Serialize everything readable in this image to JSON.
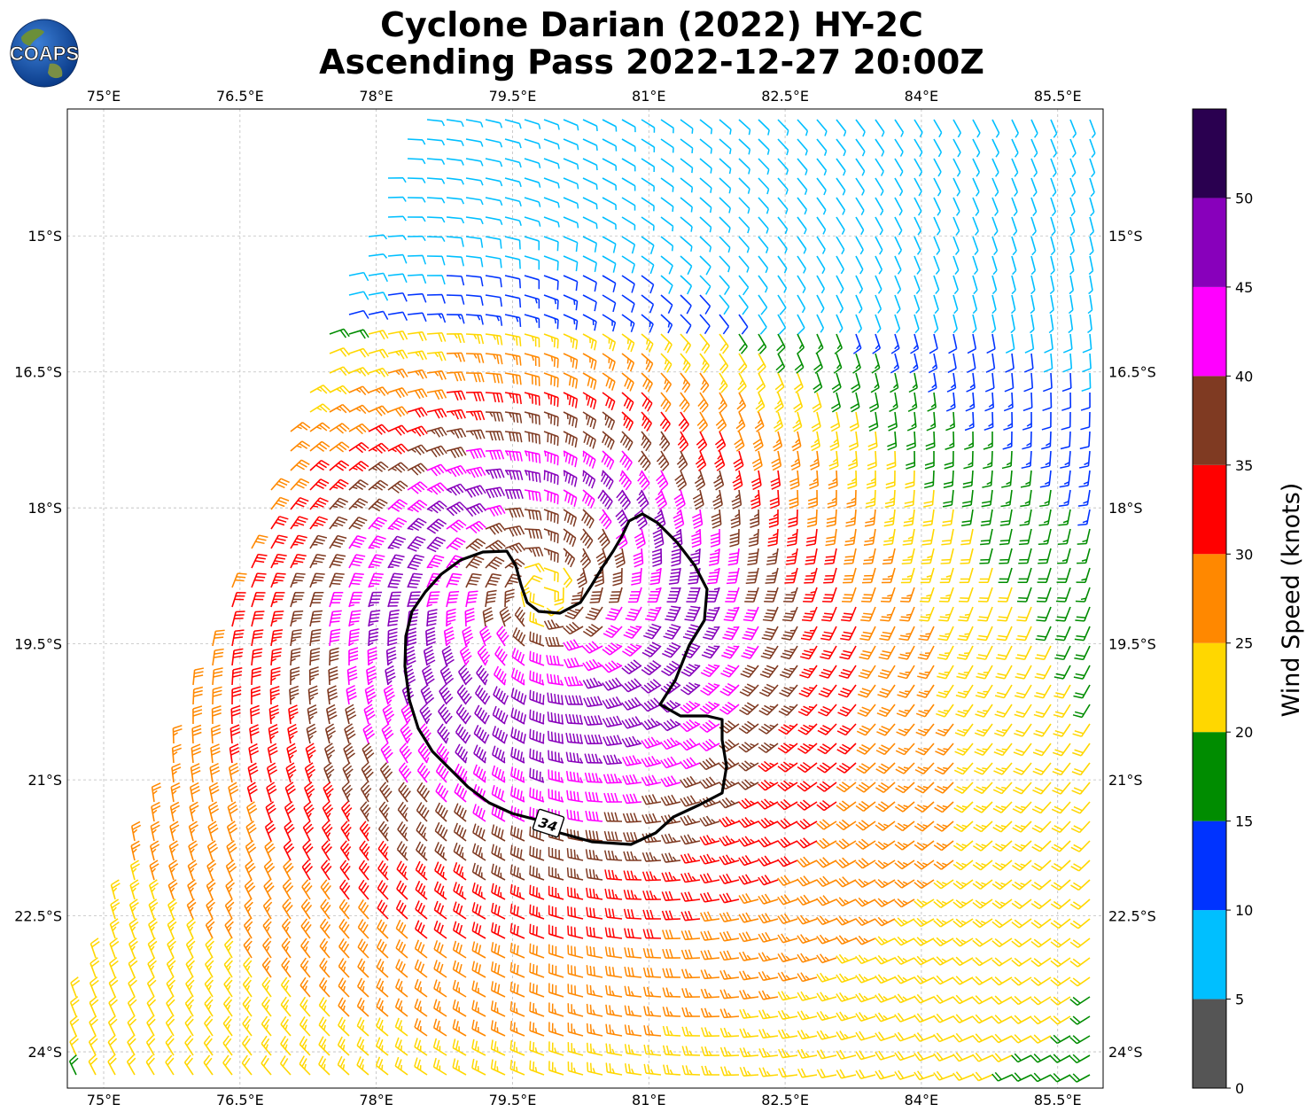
{
  "title_line1": "Cyclone Darian (2022) HY-2C",
  "title_line2": "Ascending Pass 2022-12-27 20:00Z",
  "logo_text": "COAPS",
  "colorbar": {
    "label": "Wind Speed (knots)",
    "bins": [
      {
        "from": 0,
        "to": 5,
        "color": "#555555"
      },
      {
        "from": 5,
        "to": 10,
        "color": "#00bfff"
      },
      {
        "from": 10,
        "to": 15,
        "color": "#0033ff"
      },
      {
        "from": 15,
        "to": 20,
        "color": "#008c00"
      },
      {
        "from": 20,
        "to": 25,
        "color": "#ffd700"
      },
      {
        "from": 25,
        "to": 30,
        "color": "#ff8800"
      },
      {
        "from": 30,
        "to": 35,
        "color": "#ff0000"
      },
      {
        "from": 35,
        "to": 40,
        "color": "#7f3a22"
      },
      {
        "from": 40,
        "to": 45,
        "color": "#ff00ff"
      },
      {
        "from": 45,
        "to": 50,
        "color": "#8800bb"
      },
      {
        "from": 50,
        "to": 55,
        "color": "#2a0050"
      }
    ],
    "tick_labels": [
      "0",
      "5",
      "10",
      "15",
      "20",
      "25",
      "30",
      "35",
      "40",
      "45",
      "50"
    ]
  },
  "chart_data": {
    "type": "wind-barb map",
    "x_ticks": [
      "75°E",
      "76.5°E",
      "78°E",
      "79.5°E",
      "81°E",
      "82.5°E",
      "84°E",
      "85.5°E"
    ],
    "x_tick_values": [
      75,
      76.5,
      78,
      79.5,
      81,
      82.5,
      84,
      85.5
    ],
    "y_ticks": [
      "15°S",
      "16.5°S",
      "18°S",
      "19.5°S",
      "21°S",
      "22.5°S",
      "24°S"
    ],
    "y_tick_values": [
      -15,
      -16.5,
      -18,
      -19.5,
      -21,
      -22.5,
      -24
    ],
    "lon_range": [
      74.6,
      86.0
    ],
    "lat_range": [
      -24.4,
      -13.6
    ],
    "grid": true,
    "storm_center": {
      "lon": 79.85,
      "lat": -18.95
    },
    "contour_label": "34",
    "contour_value_knots": 34
  }
}
